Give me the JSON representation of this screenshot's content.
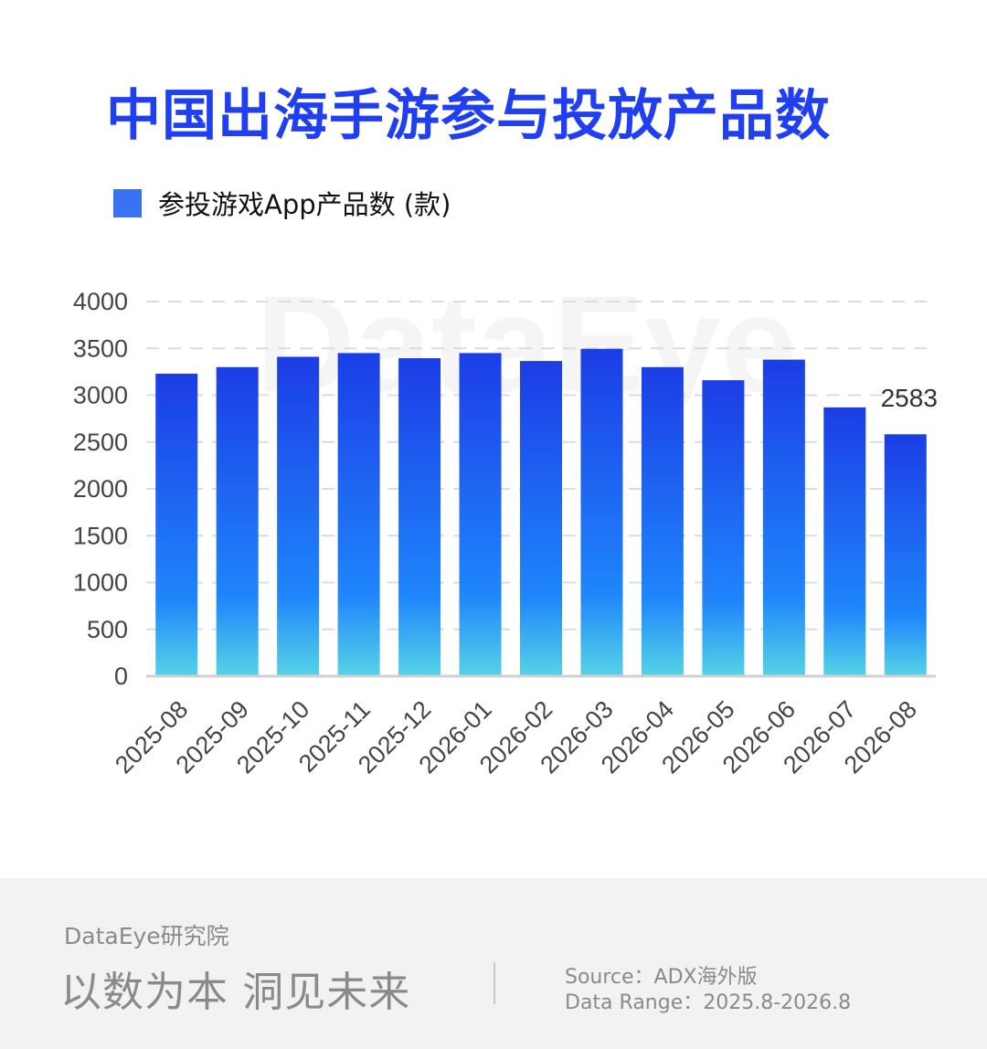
{
  "title": "中国出海手游参与投放产品数",
  "legend": {
    "label": "参投游戏App产品数 (款)",
    "color": "#3a72f5"
  },
  "watermark": "DataEye",
  "chart_data": {
    "type": "bar",
    "title": "中国出海手游参与投放产品数",
    "categories": [
      "2025-08",
      "2025-09",
      "2025-10",
      "2025-11",
      "2025-12",
      "2026-01",
      "2026-02",
      "2026-03",
      "2026-04",
      "2026-05",
      "2026-06",
      "2026-07",
      "2026-08"
    ],
    "series": [
      {
        "name": "参投游戏App产品数 (款)",
        "values": [
          3230,
          3300,
          3410,
          3450,
          3395,
          3450,
          3365,
          3495,
          3300,
          3160,
          3380,
          2870,
          2583
        ]
      }
    ],
    "data_labels": [
      {
        "index": 12,
        "text": "2583"
      }
    ],
    "ylim": [
      0,
      4000
    ],
    "yticks": [
      0,
      500,
      1000,
      1500,
      2000,
      2500,
      3000,
      3500,
      4000
    ],
    "grid": "horizontal-dashed",
    "legend_position": "top-left",
    "colors": {
      "bar_top": "#1c3de6",
      "bar_mid": "#1f86fb",
      "bar_bottom": "#56d3e6",
      "grid": "#dcdcdc",
      "axis": "#d0d0d0",
      "tick_text": "#444444"
    }
  },
  "footer": {
    "brand": "DataEye研究院",
    "slogan": "以数为本 洞见未来",
    "source": "Source：ADX海外版",
    "range": "Data Range：2025.8-2026.8"
  }
}
